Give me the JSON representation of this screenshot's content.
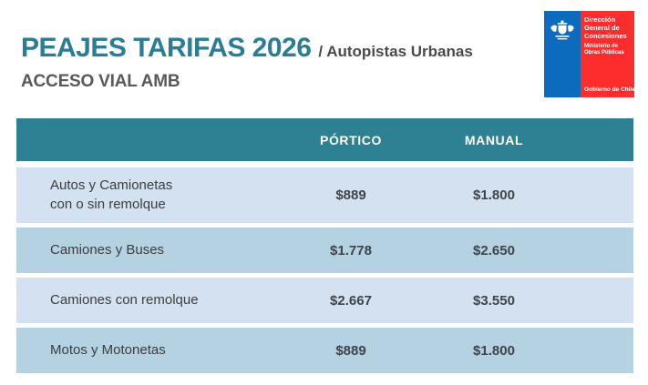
{
  "header": {
    "title": "PEAJES TARIFAS 2026",
    "subtitle": "/ Autopistas Urbanas",
    "section": "ACCESO VIAL AMB"
  },
  "logo": {
    "agency": "Dirección General de Concesiones",
    "ministry": "Ministerio de Obras Públicas",
    "footer": "Gobierno de Chile",
    "emblem_icon": "chile-coat-of-arms-icon",
    "blue": "#0c6bbd",
    "red": "#fb2d2d"
  },
  "table": {
    "columns": [
      "PÓRTICO",
      "MANUAL"
    ],
    "rows": [
      {
        "label_lines": [
          "Autos y Camionetas",
          "con o sin remolque"
        ],
        "portico": "$889",
        "manual": "$1.800"
      },
      {
        "label_lines": [
          "Camiones y Buses"
        ],
        "portico": "$1.778",
        "manual": "$2.650"
      },
      {
        "label_lines": [
          "Camiones con remolque"
        ],
        "portico": "$2.667",
        "manual": "$3.550"
      },
      {
        "label_lines": [
          "Motos y Motonetas"
        ],
        "portico": "$889",
        "manual": "$1.800"
      }
    ],
    "colors": {
      "header_bg": "#2e8192",
      "row_light": "#d3e1f0",
      "row_dark": "#b4d2e2",
      "title_teal": "#2a7d94"
    }
  }
}
